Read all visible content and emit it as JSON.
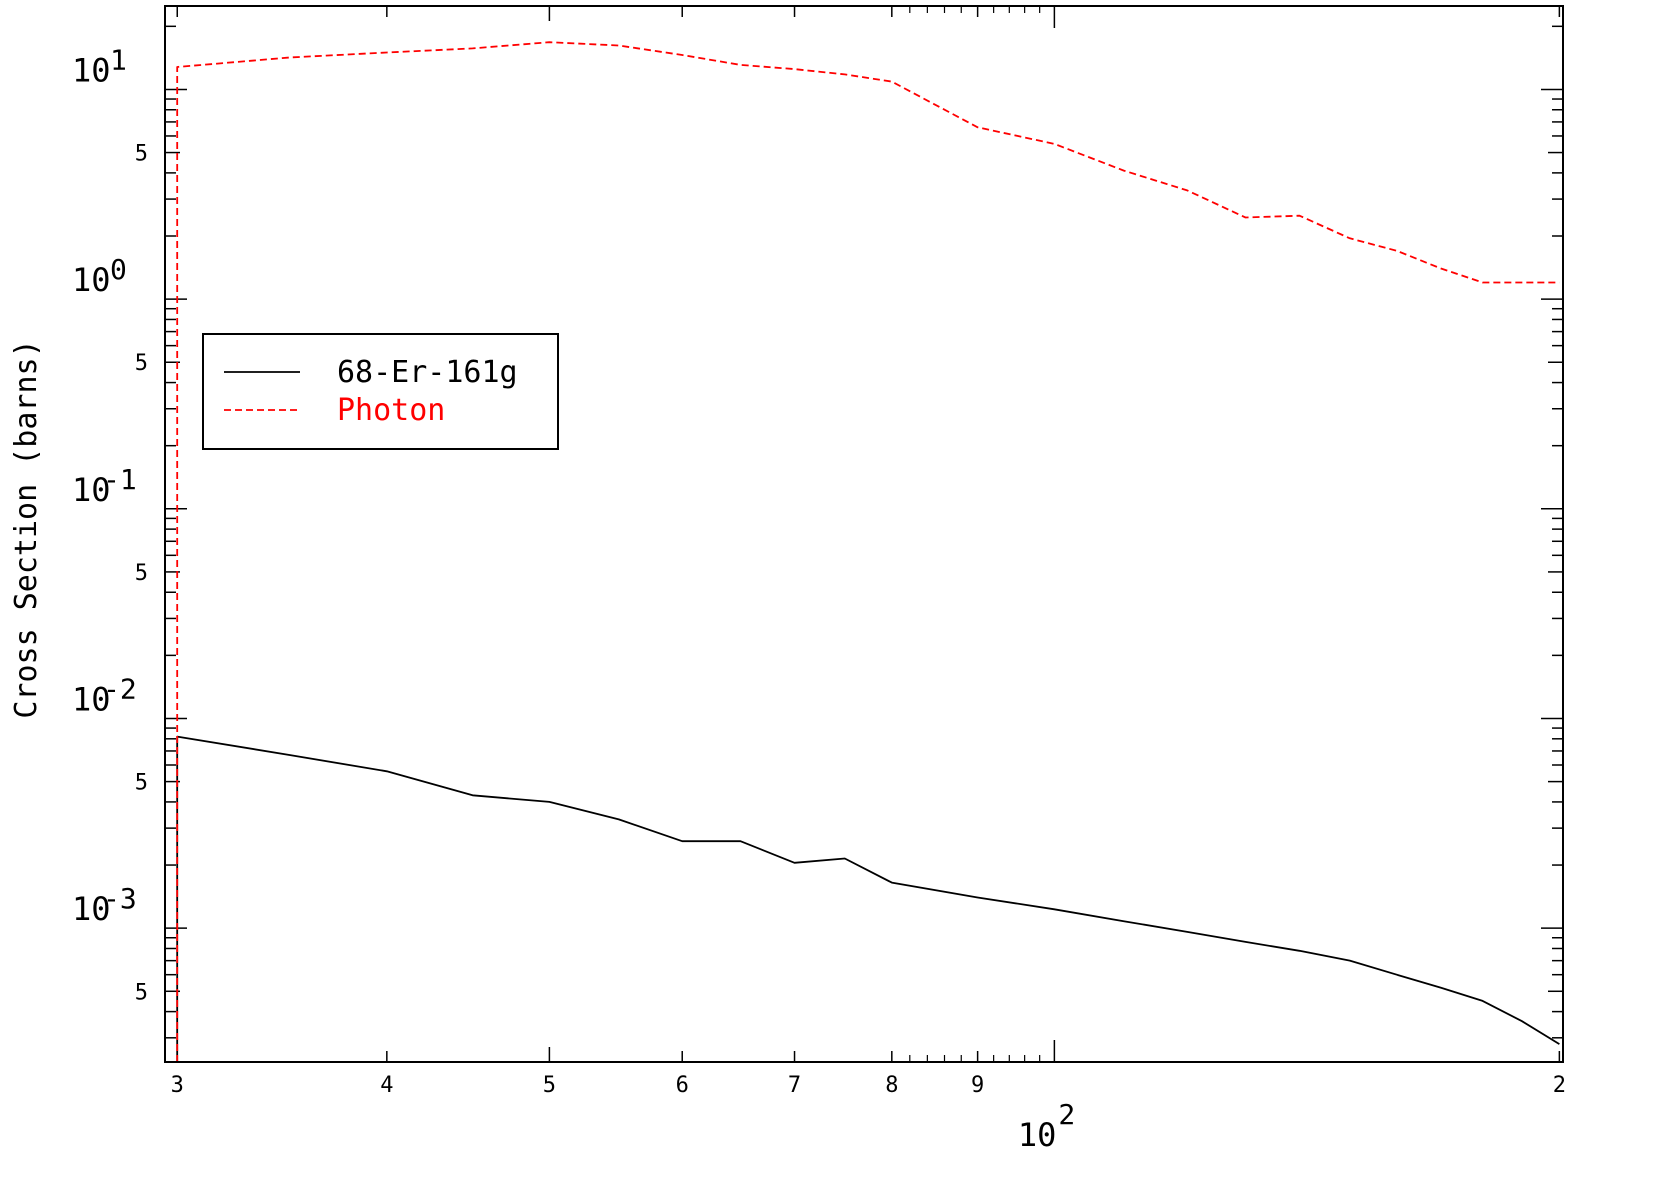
{
  "chart_data": {
    "type": "line",
    "title": "",
    "xlabel": "",
    "ylabel": "Cross Section (barns)",
    "xscale": "log",
    "yscale": "log",
    "xlim": [
      29.5,
      201
    ],
    "ylim": [
      0.00023,
      25
    ],
    "grid": false,
    "legend_position": "upper-left",
    "x_ticks": [
      {
        "value": 30,
        "label": "3"
      },
      {
        "value": 40,
        "label": "4"
      },
      {
        "value": 50,
        "label": "5"
      },
      {
        "value": 60,
        "label": "6"
      },
      {
        "value": 70,
        "label": "7"
      },
      {
        "value": 80,
        "label": "8"
      },
      {
        "value": 90,
        "label": "9"
      },
      {
        "value": 200,
        "label": "2"
      }
    ],
    "x_decade_label": {
      "value": 100,
      "base": "10",
      "exp": "2"
    },
    "y_decade_labels": [
      {
        "value": 10,
        "base": "10",
        "exp": "1"
      },
      {
        "value": 1,
        "base": "10",
        "exp": "0"
      },
      {
        "value": 0.1,
        "base": "10",
        "exp": "-1"
      },
      {
        "value": 0.01,
        "base": "10",
        "exp": "-2"
      },
      {
        "value": 0.001,
        "base": "10",
        "exp": "-3"
      }
    ],
    "y_five_labels": [
      {
        "value": 5,
        "label": "5"
      },
      {
        "value": 0.5,
        "label": "5"
      },
      {
        "value": 0.05,
        "label": "5"
      },
      {
        "value": 0.005,
        "label": "5"
      },
      {
        "value": 0.0005,
        "label": "5"
      }
    ],
    "series": [
      {
        "name": "68-Er-161g",
        "color": "#000000",
        "dash": "solid",
        "x": [
          30,
          30,
          35,
          40,
          45,
          50,
          55,
          60,
          65,
          70,
          75,
          80,
          90,
          100,
          110,
          120,
          130,
          140,
          150,
          160,
          170,
          180,
          190,
          200
        ],
        "y": [
          0.00023,
          0.0082,
          0.0067,
          0.0056,
          0.0043,
          0.004,
          0.0033,
          0.0026,
          0.0026,
          0.00205,
          0.00215,
          0.00165,
          0.0014,
          0.00123,
          0.00108,
          0.00096,
          0.00086,
          0.00078,
          0.0007,
          0.0006,
          0.00052,
          0.00045,
          0.00036,
          0.00028
        ]
      },
      {
        "name": "Photon",
        "color": "#ff0000",
        "dash": "dashed",
        "x": [
          30,
          30,
          35,
          40,
          45,
          50,
          55,
          60,
          65,
          70,
          75,
          80,
          90,
          100,
          110,
          120,
          130,
          140,
          150,
          160,
          170,
          180,
          190,
          200
        ],
        "y": [
          0.00023,
          12.8,
          14.2,
          15.0,
          15.7,
          16.8,
          16.2,
          14.6,
          13.1,
          12.5,
          11.8,
          10.9,
          6.6,
          5.5,
          4.1,
          3.3,
          2.45,
          2.5,
          1.95,
          1.7,
          1.4,
          1.2,
          1.2,
          1.2
        ]
      }
    ]
  }
}
